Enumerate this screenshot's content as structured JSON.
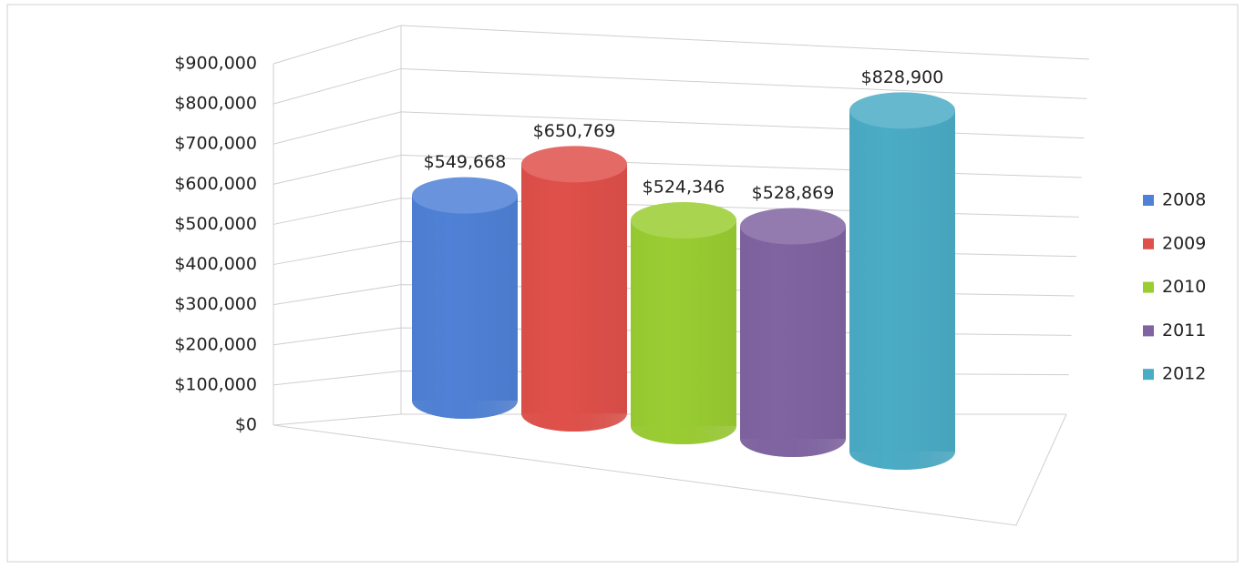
{
  "chart_data": {
    "type": "bar",
    "series": [
      {
        "name": "2008",
        "color": "#4f81d6",
        "values": [
          549668
        ],
        "value_labels": [
          "$549,668"
        ]
      },
      {
        "name": "2009",
        "color": "#e0504a",
        "values": [
          650769
        ],
        "value_labels": [
          "$650,769"
        ]
      },
      {
        "name": "2010",
        "color": "#9acd32",
        "values": [
          524346
        ],
        "value_labels": [
          "$524,346"
        ]
      },
      {
        "name": "2011",
        "color": "#8064a2",
        "values": [
          528869
        ],
        "value_labels": [
          "$528,869"
        ]
      },
      {
        "name": "2012",
        "color": "#4bacc6",
        "values": [
          828900
        ],
        "value_labels": [
          "$828,900"
        ]
      }
    ],
    "ylim": [
      0,
      900000
    ],
    "yticks": [
      {
        "value": 0,
        "label": "$0"
      },
      {
        "value": 100000,
        "label": "$100,000"
      },
      {
        "value": 200000,
        "label": "$200,000"
      },
      {
        "value": 300000,
        "label": "$300,000"
      },
      {
        "value": 400000,
        "label": "$400,000"
      },
      {
        "value": 500000,
        "label": "$500,000"
      },
      {
        "value": 600000,
        "label": "$600,000"
      },
      {
        "value": 700000,
        "label": "$700,000"
      },
      {
        "value": 800000,
        "label": "$800,000"
      },
      {
        "value": 900000,
        "label": "$900,000"
      }
    ],
    "grid": true,
    "legend": "right"
  }
}
